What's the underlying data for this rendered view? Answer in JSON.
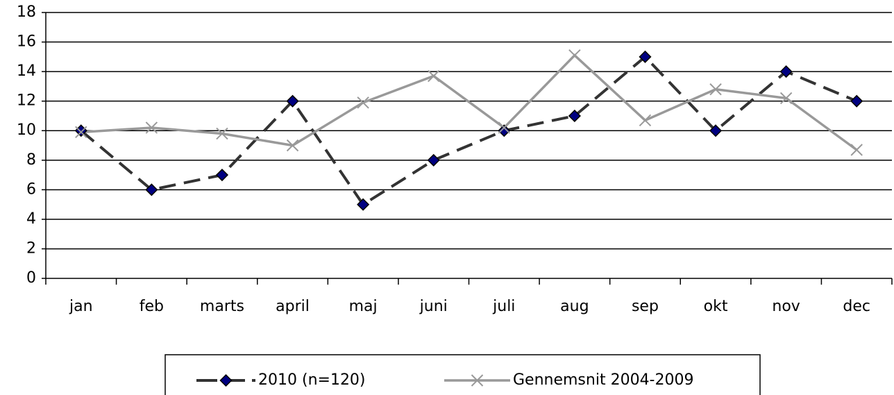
{
  "chart_data": {
    "type": "line",
    "categories": [
      "jan",
      "feb",
      "marts",
      "april",
      "maj",
      "juni",
      "juli",
      "aug",
      "sep",
      "okt",
      "nov",
      "dec"
    ],
    "series": [
      {
        "name": "2010 (n=120)",
        "color": "#333333",
        "marker_color": "#000080",
        "values": [
          10,
          6,
          7,
          12,
          5,
          8,
          10,
          11,
          15,
          10,
          14,
          12
        ]
      },
      {
        "name": "Gennemsnit 2004-2009",
        "color": "#999999",
        "marker_color": "#999999",
        "values": [
          9.9,
          10.2,
          9.8,
          9.0,
          11.9,
          13.7,
          10.2,
          15.1,
          10.7,
          12.8,
          12.2,
          8.7
        ]
      }
    ],
    "ylim": [
      0,
      18
    ],
    "yticks": [
      0,
      2,
      4,
      6,
      8,
      10,
      12,
      14,
      16,
      18
    ],
    "grid": true,
    "legend": "bottom"
  }
}
